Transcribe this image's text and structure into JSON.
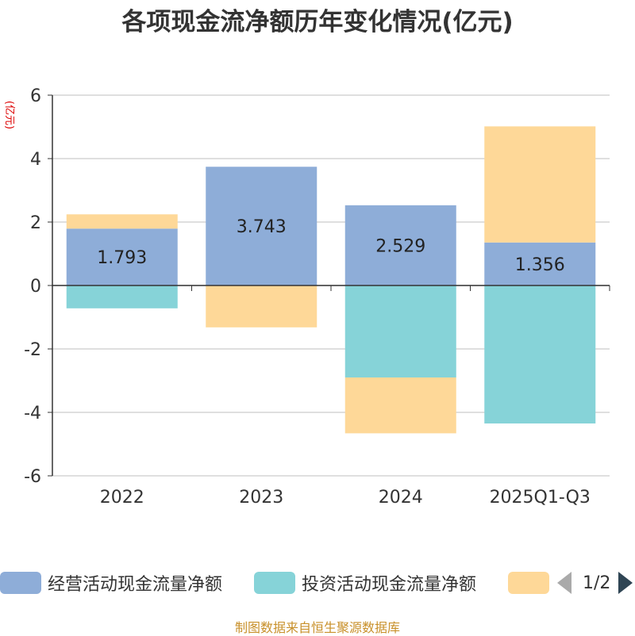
{
  "colors": {
    "operating": "#8eadd8",
    "investing": "#86d3d8",
    "financing": "#fed898",
    "axis": "#333333",
    "grid": "#cccccc",
    "unit": "#dd0000",
    "source": "#c8902a"
  },
  "chart_data": {
    "type": "bar",
    "stacked": true,
    "title": "各项现金流净额历年变化情况(亿元)",
    "ylabel": "(亿元)",
    "ylim": [
      -6,
      6
    ],
    "yticks": [
      6,
      4,
      2,
      0,
      -2,
      -4,
      -6
    ],
    "categories": [
      "2022",
      "2023",
      "2024",
      "2025Q1-Q3"
    ],
    "series": [
      {
        "name": "经营活动现金流量净额",
        "color_key": "operating",
        "values": [
          1.793,
          3.743,
          2.529,
          1.356
        ],
        "labels": [
          "1.793",
          "3.743",
          "2.529",
          "1.356"
        ]
      },
      {
        "name": "投资活动现金流量净额",
        "color_key": "investing",
        "values": [
          -0.72,
          0.0,
          -2.9,
          -4.35
        ]
      },
      {
        "name": "",
        "color_key": "financing",
        "values": [
          0.45,
          -1.32,
          -1.76,
          3.66
        ]
      }
    ],
    "legend_position": "bottom"
  },
  "legend": {
    "items": [
      {
        "label": "经营活动现金流量净额",
        "color_key": "operating"
      },
      {
        "label": "投资活动现金流量净额",
        "color_key": "investing"
      },
      {
        "label": "",
        "color_key": "financing"
      }
    ],
    "page_text": "1/2"
  },
  "source_text": "制图数据来自恒生聚源数据库"
}
